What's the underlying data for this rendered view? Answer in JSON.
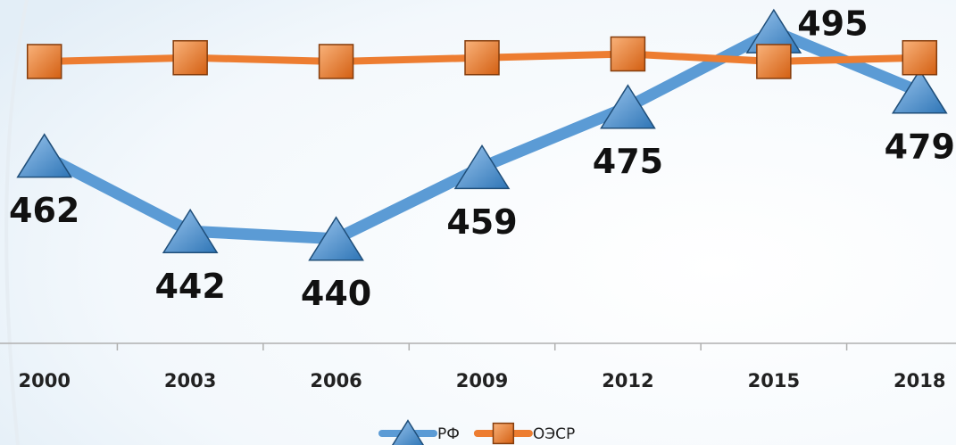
{
  "chart_data": {
    "type": "line",
    "categories": [
      "2000",
      "2003",
      "2006",
      "2009",
      "2012",
      "2015",
      "2018"
    ],
    "series": [
      {
        "name": "РФ",
        "color": "#5b9bd5",
        "marker": "triangle",
        "values": [
          462,
          442,
          440,
          459,
          475,
          495,
          479
        ]
      },
      {
        "name": "ОЭСР",
        "color": "#ed7d31",
        "marker": "square",
        "values": [
          487,
          488,
          487,
          488,
          489,
          487,
          488
        ]
      }
    ],
    "ylim": [
      430,
      500
    ],
    "legend": "bottom"
  }
}
